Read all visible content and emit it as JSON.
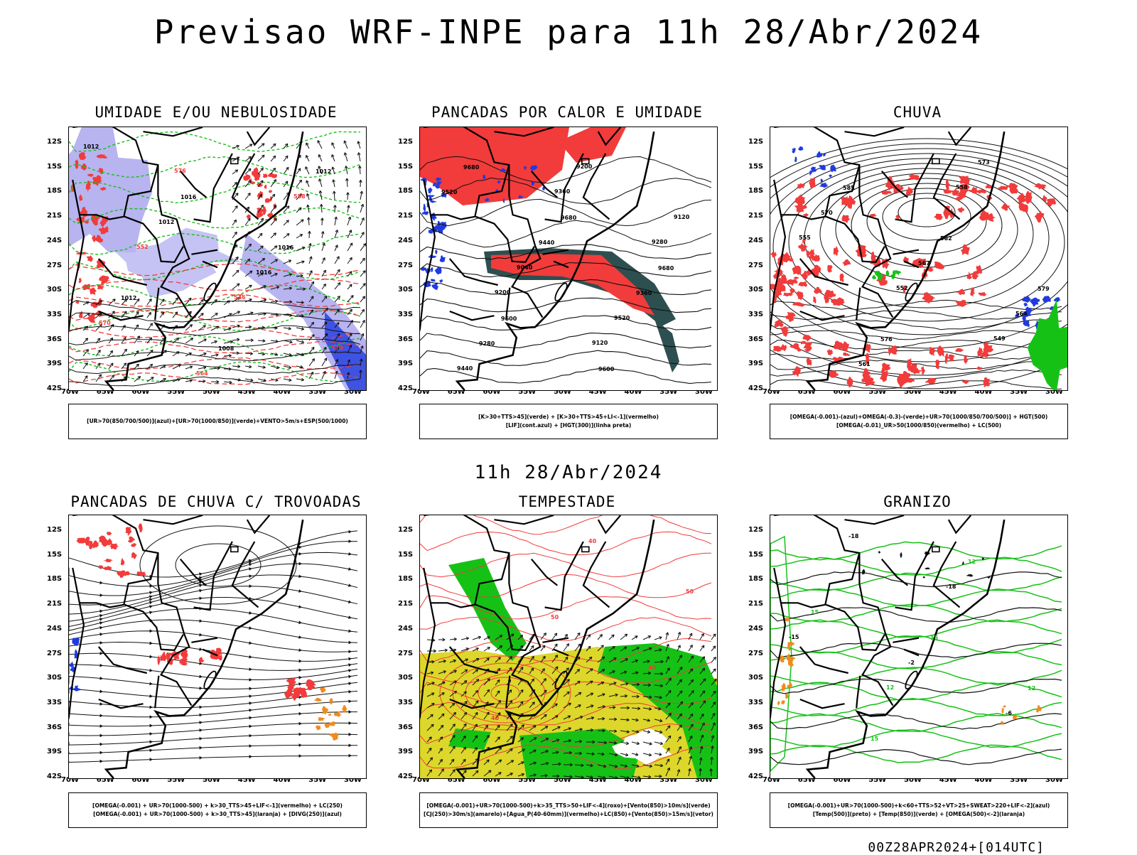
{
  "title": "Previsao WRF-INPE  para 11h 28/Abr/2024",
  "mid_date": "11h 28/Abr/2024",
  "footer": "00Z28APR2024+[014UTC]",
  "lat_labels": [
    "12S",
    "15S",
    "18S",
    "21S",
    "24S",
    "27S",
    "30S",
    "33S",
    "36S",
    "39S",
    "42S"
  ],
  "lon_labels": [
    "70W",
    "65W",
    "60W",
    "55W",
    "50W",
    "45W",
    "40W",
    "35W",
    "30W"
  ],
  "colors": {
    "red": "#f23b3b",
    "green": "#16c116",
    "dark_teal": "#2e4f4f",
    "blue": "#1f3ae0",
    "lavender": "#b7b4f0",
    "yellow": "#dcd72a",
    "orange": "#f08a1e"
  },
  "panels": [
    {
      "id": "umidade",
      "title": "UMIDADE E/OU NEBULOSIDADE",
      "legend": [
        "[UR>70(850/700/500)](azul)+[UR>70(1000/850)](verde)+VENTO>5m/s+ESP(500/1000)"
      ],
      "labels": [
        "1012",
        "1016",
        "1016",
        "1012",
        "1008",
        "1012",
        "1012",
        "1016",
        "570",
        "564",
        "558",
        "552",
        "546",
        "570",
        "576"
      ]
    },
    {
      "id": "pancadas-calor",
      "title": "PANCADAS POR CALOR E UMIDADE",
      "legend": [
        "[K>30+TTS>45](verde) + [K>30+TTS>45+LI<-1](vermelho)",
        "[LIF](cont.azul) + [HGT(300)](linha preta)"
      ],
      "labels": [
        "9680",
        "9680",
        "9680",
        "9600",
        "9600",
        "9520",
        "9440",
        "9360",
        "9280",
        "9200",
        "9120",
        "9040",
        "9520",
        "9440",
        "9360",
        "9280",
        "9200",
        "9120"
      ]
    },
    {
      "id": "chuva",
      "title": "CHUVA",
      "legend": [
        "[OMEGA(-0.001)-(azul)+OMEGA(-0.3)-(verde)+UR>70(1000/850/700/500)] + HGT(500)",
        "[OMEGA(-0.01)_UR>50(1000/850)(vermelho) + LC(500)"
      ],
      "labels": [
        "585",
        "582",
        "579",
        "576",
        "573",
        "570",
        "567",
        "564",
        "561",
        "558",
        "555",
        "552",
        "549"
      ]
    },
    {
      "id": "trovoadas",
      "title": "PANCADAS DE CHUVA C/ TROVOADAS",
      "legend": [
        "[OMEGA(-0.001) + UR>70(1000-500) + k>30_TTS>45+LIF<-1](vermelho) + LC(250)",
        "[OMEGA(-0.001) + UR>70(1000-500) + k>30_TTS>45](laranja) + [DIVG(250)](azul)"
      ],
      "labels": []
    },
    {
      "id": "tempestade",
      "title": "TEMPESTADE",
      "legend": [
        "[OMEGA(-0.001)+UR>70(1000-500)+k>35_TTS>50+LIF<-4](roxo)+[Vento(850)>10m/s](verde)",
        "[CJ(250)>30m/s](amarelo)+[Agua_P(40-60mm)](vermelho)+LC(850)+[Vento(850)>15m/s](vetor)"
      ],
      "labels": [
        "50",
        "40",
        "40",
        "40",
        "50"
      ]
    },
    {
      "id": "granizo",
      "title": "GRANIZO",
      "legend": [
        "[OMEGA(-0.001)+UR>70(1000-500)+k<60+TTS>52+VT>25+SWEAT>220+LIF<-2](azul)",
        "[Temp(500)](preto) + [Temp(850)](verde) + [OMEGA(500)<-2](laranja)"
      ],
      "labels": [
        "15",
        "12",
        "15",
        "12",
        "15",
        "-2",
        "-6",
        "-18",
        "-18",
        "-15",
        "12"
      ]
    }
  ]
}
